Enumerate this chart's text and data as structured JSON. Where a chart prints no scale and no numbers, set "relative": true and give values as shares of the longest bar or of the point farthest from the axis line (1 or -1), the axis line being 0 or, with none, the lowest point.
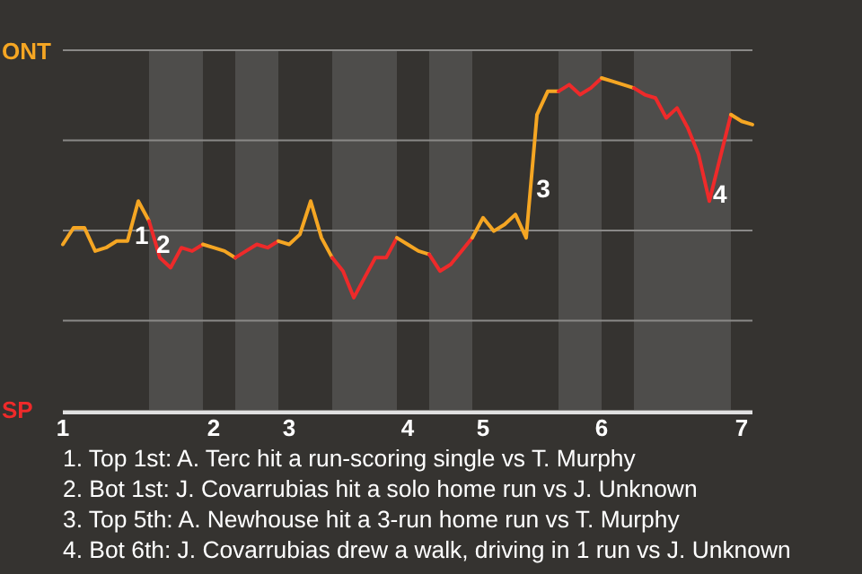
{
  "chart_data": {
    "type": "line",
    "relative": true,
    "categories": [
      "1",
      null,
      null,
      null,
      null,
      null,
      null,
      null,
      null,
      null,
      null,
      null,
      null,
      null,
      "2",
      null,
      null,
      null,
      null,
      null,
      null,
      "3",
      null,
      null,
      null,
      null,
      null,
      null,
      null,
      null,
      null,
      null,
      "4",
      null,
      null,
      null,
      null,
      null,
      null,
      "5",
      null,
      null,
      null,
      null,
      null,
      null,
      null,
      null,
      null,
      null,
      "6",
      null,
      null,
      null,
      null,
      null,
      null,
      null,
      null,
      null,
      null,
      null,
      null,
      "7",
      null
    ],
    "series": [
      {
        "name": "ONT",
        "color": "#f5a623",
        "values": [
          0.5,
          0.55,
          0.55,
          0.48,
          0.49,
          0.51,
          0.51,
          0.63,
          0.57,
          null,
          null,
          null,
          null,
          null,
          null,
          null,
          null,
          null,
          null,
          null,
          null,
          null,
          null,
          null,
          null,
          null,
          null,
          null,
          null,
          null,
          null,
          null,
          null,
          null,
          null,
          null,
          null,
          null,
          null,
          null,
          null,
          null,
          null,
          null,
          null,
          null,
          null,
          null,
          null,
          null,
          null,
          null,
          null,
          null,
          null,
          null,
          null,
          null,
          null,
          null,
          null,
          null,
          null,
          null,
          null
        ]
      },
      {
        "name": "SP",
        "color": "#ee2a2a",
        "values": [
          null,
          null,
          null,
          null,
          null,
          null,
          null,
          null,
          0.57,
          0.46,
          0.43,
          0.49,
          0.48,
          0.5,
          null,
          null,
          null,
          null,
          null,
          null,
          null,
          null,
          null,
          null,
          null,
          null,
          null,
          null,
          null,
          null,
          null,
          null,
          null,
          null,
          null,
          null,
          null,
          null,
          null,
          null,
          null,
          null,
          null,
          null,
          null,
          null,
          null,
          null,
          null,
          null,
          null,
          null,
          null,
          null,
          null,
          null,
          null,
          null,
          null,
          null,
          null,
          null,
          null,
          null,
          null
        ]
      },
      {
        "color": "#f5a623",
        "values": [
          null,
          null,
          null,
          null,
          null,
          null,
          null,
          null,
          null,
          null,
          null,
          null,
          null,
          0.5,
          0.49,
          0.48,
          0.46,
          null,
          null,
          null,
          null,
          null,
          null,
          null,
          null,
          null,
          null,
          null,
          null,
          null,
          null,
          null,
          null,
          null,
          null,
          null,
          null,
          null,
          null,
          null,
          null,
          null,
          null,
          null,
          null,
          null,
          null,
          null,
          null,
          null,
          null,
          null,
          null,
          null,
          null,
          null,
          null,
          null,
          null,
          null,
          null,
          null,
          null,
          null,
          null
        ]
      },
      {
        "color": "#ee2a2a",
        "values": [
          null,
          null,
          null,
          null,
          null,
          null,
          null,
          null,
          null,
          null,
          null,
          null,
          null,
          null,
          null,
          null,
          0.46,
          0.48,
          0.5,
          0.49,
          0.51,
          null,
          null,
          null,
          null,
          null,
          null,
          null,
          null,
          null,
          null,
          null,
          null,
          null,
          null,
          null,
          null,
          null,
          null,
          null,
          null,
          null,
          null,
          null,
          null,
          null,
          null,
          null,
          null,
          null,
          null,
          null,
          null,
          null,
          null,
          null,
          null,
          null,
          null,
          null,
          null,
          null,
          null,
          null,
          null
        ]
      },
      {
        "color": "#f5a623",
        "values": [
          null,
          null,
          null,
          null,
          null,
          null,
          null,
          null,
          null,
          null,
          null,
          null,
          null,
          null,
          null,
          null,
          null,
          null,
          null,
          null,
          0.51,
          0.5,
          0.53,
          0.63,
          0.52,
          0.46,
          null,
          null,
          null,
          null,
          null,
          null,
          null,
          null,
          null,
          null,
          null,
          null,
          null,
          null,
          null,
          null,
          null,
          null,
          null,
          null,
          null,
          null,
          null,
          null,
          null,
          null,
          null,
          null,
          null,
          null,
          null,
          null,
          null,
          null,
          null,
          null,
          null,
          null,
          null
        ]
      },
      {
        "color": "#ee2a2a",
        "values": [
          null,
          null,
          null,
          null,
          null,
          null,
          null,
          null,
          null,
          null,
          null,
          null,
          null,
          null,
          null,
          null,
          null,
          null,
          null,
          null,
          null,
          null,
          null,
          null,
          null,
          0.46,
          0.42,
          0.34,
          0.4,
          0.46,
          0.46,
          0.52,
          null,
          null,
          null,
          null,
          null,
          null,
          null,
          null,
          null,
          null,
          null,
          null,
          null,
          null,
          null,
          null,
          null,
          null,
          null,
          null,
          null,
          null,
          null,
          null,
          null,
          null,
          null,
          null,
          null,
          null,
          null,
          null,
          null
        ]
      },
      {
        "color": "#f5a623",
        "values": [
          null,
          null,
          null,
          null,
          null,
          null,
          null,
          null,
          null,
          null,
          null,
          null,
          null,
          null,
          null,
          null,
          null,
          null,
          null,
          null,
          null,
          null,
          null,
          null,
          null,
          null,
          null,
          null,
          null,
          null,
          null,
          0.52,
          0.5,
          0.48,
          0.47,
          null,
          null,
          null,
          null,
          null,
          null,
          null,
          null,
          null,
          null,
          null,
          null,
          null,
          null,
          null,
          null,
          null,
          null,
          null,
          null,
          null,
          null,
          null,
          null,
          null,
          null,
          null,
          null,
          null,
          null
        ]
      },
      {
        "color": "#ee2a2a",
        "values": [
          null,
          null,
          null,
          null,
          null,
          null,
          null,
          null,
          null,
          null,
          null,
          null,
          null,
          null,
          null,
          null,
          null,
          null,
          null,
          null,
          null,
          null,
          null,
          null,
          null,
          null,
          null,
          null,
          null,
          null,
          null,
          null,
          null,
          null,
          0.47,
          0.42,
          0.44,
          0.48,
          0.52,
          null,
          null,
          null,
          null,
          null,
          null,
          null,
          null,
          null,
          null,
          null,
          null,
          null,
          null,
          null,
          null,
          null,
          null,
          null,
          null,
          null,
          null,
          null,
          null,
          null,
          null
        ]
      },
      {
        "color": "#f5a623",
        "values": [
          null,
          null,
          null,
          null,
          null,
          null,
          null,
          null,
          null,
          null,
          null,
          null,
          null,
          null,
          null,
          null,
          null,
          null,
          null,
          null,
          null,
          null,
          null,
          null,
          null,
          null,
          null,
          null,
          null,
          null,
          null,
          null,
          null,
          null,
          null,
          null,
          null,
          null,
          0.52,
          0.58,
          0.54,
          0.56,
          0.59,
          0.52,
          0.89,
          0.96,
          0.96,
          null,
          null,
          null,
          null,
          null,
          null,
          null,
          null,
          null,
          null,
          null,
          null,
          null,
          null,
          null,
          null,
          null,
          null
        ]
      },
      {
        "color": "#ee2a2a",
        "values": [
          null,
          null,
          null,
          null,
          null,
          null,
          null,
          null,
          null,
          null,
          null,
          null,
          null,
          null,
          null,
          null,
          null,
          null,
          null,
          null,
          null,
          null,
          null,
          null,
          null,
          null,
          null,
          null,
          null,
          null,
          null,
          null,
          null,
          null,
          null,
          null,
          null,
          null,
          null,
          null,
          null,
          null,
          null,
          null,
          null,
          null,
          0.96,
          0.98,
          0.95,
          0.97,
          1,
          null,
          null,
          null,
          null,
          null,
          null,
          null,
          null,
          null,
          null,
          null,
          null,
          null,
          null
        ]
      },
      {
        "color": "#f5a623",
        "values": [
          null,
          null,
          null,
          null,
          null,
          null,
          null,
          null,
          null,
          null,
          null,
          null,
          null,
          null,
          null,
          null,
          null,
          null,
          null,
          null,
          null,
          null,
          null,
          null,
          null,
          null,
          null,
          null,
          null,
          null,
          null,
          null,
          null,
          null,
          null,
          null,
          null,
          null,
          null,
          null,
          null,
          null,
          null,
          null,
          null,
          null,
          null,
          null,
          null,
          null,
          1,
          0.99,
          0.98,
          0.97,
          null,
          null,
          null,
          null,
          null,
          null,
          null,
          null,
          null,
          null,
          null
        ]
      },
      {
        "color": "#ee2a2a",
        "values": [
          null,
          null,
          null,
          null,
          null,
          null,
          null,
          null,
          null,
          null,
          null,
          null,
          null,
          null,
          null,
          null,
          null,
          null,
          null,
          null,
          null,
          null,
          null,
          null,
          null,
          null,
          null,
          null,
          null,
          null,
          null,
          null,
          null,
          null,
          null,
          null,
          null,
          null,
          null,
          null,
          null,
          null,
          null,
          null,
          null,
          null,
          null,
          null,
          null,
          null,
          null,
          null,
          null,
          0.97,
          0.95,
          0.94,
          0.88,
          0.91,
          0.85,
          0.77,
          0.63,
          0.76,
          0.89,
          null,
          null
        ]
      },
      {
        "color": "#f5a623",
        "values": [
          null,
          null,
          null,
          null,
          null,
          null,
          null,
          null,
          null,
          null,
          null,
          null,
          null,
          null,
          null,
          null,
          null,
          null,
          null,
          null,
          null,
          null,
          null,
          null,
          null,
          null,
          null,
          null,
          null,
          null,
          null,
          null,
          null,
          null,
          null,
          null,
          null,
          null,
          null,
          null,
          null,
          null,
          null,
          null,
          null,
          null,
          null,
          null,
          null,
          null,
          null,
          null,
          null,
          null,
          null,
          null,
          null,
          null,
          null,
          null,
          null,
          null,
          0.89,
          0.87,
          0.86
        ]
      }
    ],
    "grid": "y",
    "annotations": [
      {
        "text": "1",
        "y": 0.63
      },
      {
        "text": "2",
        "y": 0.43
      },
      {
        "text": "3",
        "y": 0.77
      },
      {
        "text": "4",
        "y": 0.63
      },
      "1. Top 1st: A. Terc hit a run-scoring single vs T. Murphy",
      "2. Bot 1st: J. Covarrubias hit a solo home run vs J. Unknown",
      "3. Top 5th: A. Newhouse hit a 3-run home run vs T. Murphy",
      "4. Bot 6th: J. Covarrubias drew a walk, driving in 1 run vs J. Unknown"
    ],
    "marker": "none",
    "line_style": "solid"
  }
}
